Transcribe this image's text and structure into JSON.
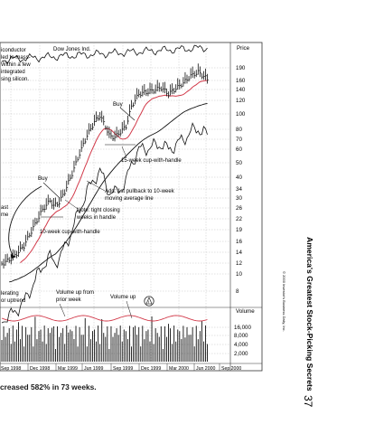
{
  "book": {
    "running_title": "America's Greatest Stock-Picking Secrets",
    "page_number": "37",
    "copyright": "© 2000 Investor's Business Daily, Inc."
  },
  "caption": "creased 582% in 73 weeks.",
  "chart": {
    "index_label": "Dow Jones Ind.",
    "price_header": "Price",
    "volume_header": "Volume",
    "price_ticks": [
      "190",
      "160",
      "140",
      "120",
      "100",
      "80",
      "70",
      "60",
      "50",
      "40",
      "34",
      "30",
      "26",
      "22",
      "19",
      "16",
      "14",
      "12",
      "10",
      "8"
    ],
    "volume_ticks": [
      "16,000",
      "8,000",
      "4,000",
      "2,000"
    ],
    "months": [
      "Sep 1998",
      "Dec 1998",
      "Mar 1999",
      "Jun 1999",
      "Sep 1999",
      "Dec 1999",
      "Mar 2000",
      "Jun 2000",
      "Sep 2000"
    ],
    "annotations": {
      "semiconductor": [
        "iconductor",
        "led to mass-",
        "Within a few",
        "integrated",
        "sing silicon."
      ],
      "buy_upper": "Buy",
      "buy_lower": "Buy",
      "cup_15": "15-week cup-with-handle",
      "pullback": [
        "Add: 1st pullback to 10-week",
        "moving average line"
      ],
      "tight_closing": [
        "Note: tight closing",
        "weeks in handle"
      ],
      "cup_10": "10-week cup-with-handle",
      "left_edge": [
        "ast",
        "me"
      ],
      "accelerating": [
        "lerating",
        "or uptrend"
      ],
      "volume_up_from": [
        "Volume up from",
        "prior week"
      ],
      "volume_up": "Volume up",
      "ibd_badge": "I"
    }
  },
  "colors": {
    "ma_line": "#d23a4a",
    "guide_line": "#c8202e",
    "grid": "#b5b5b5"
  }
}
